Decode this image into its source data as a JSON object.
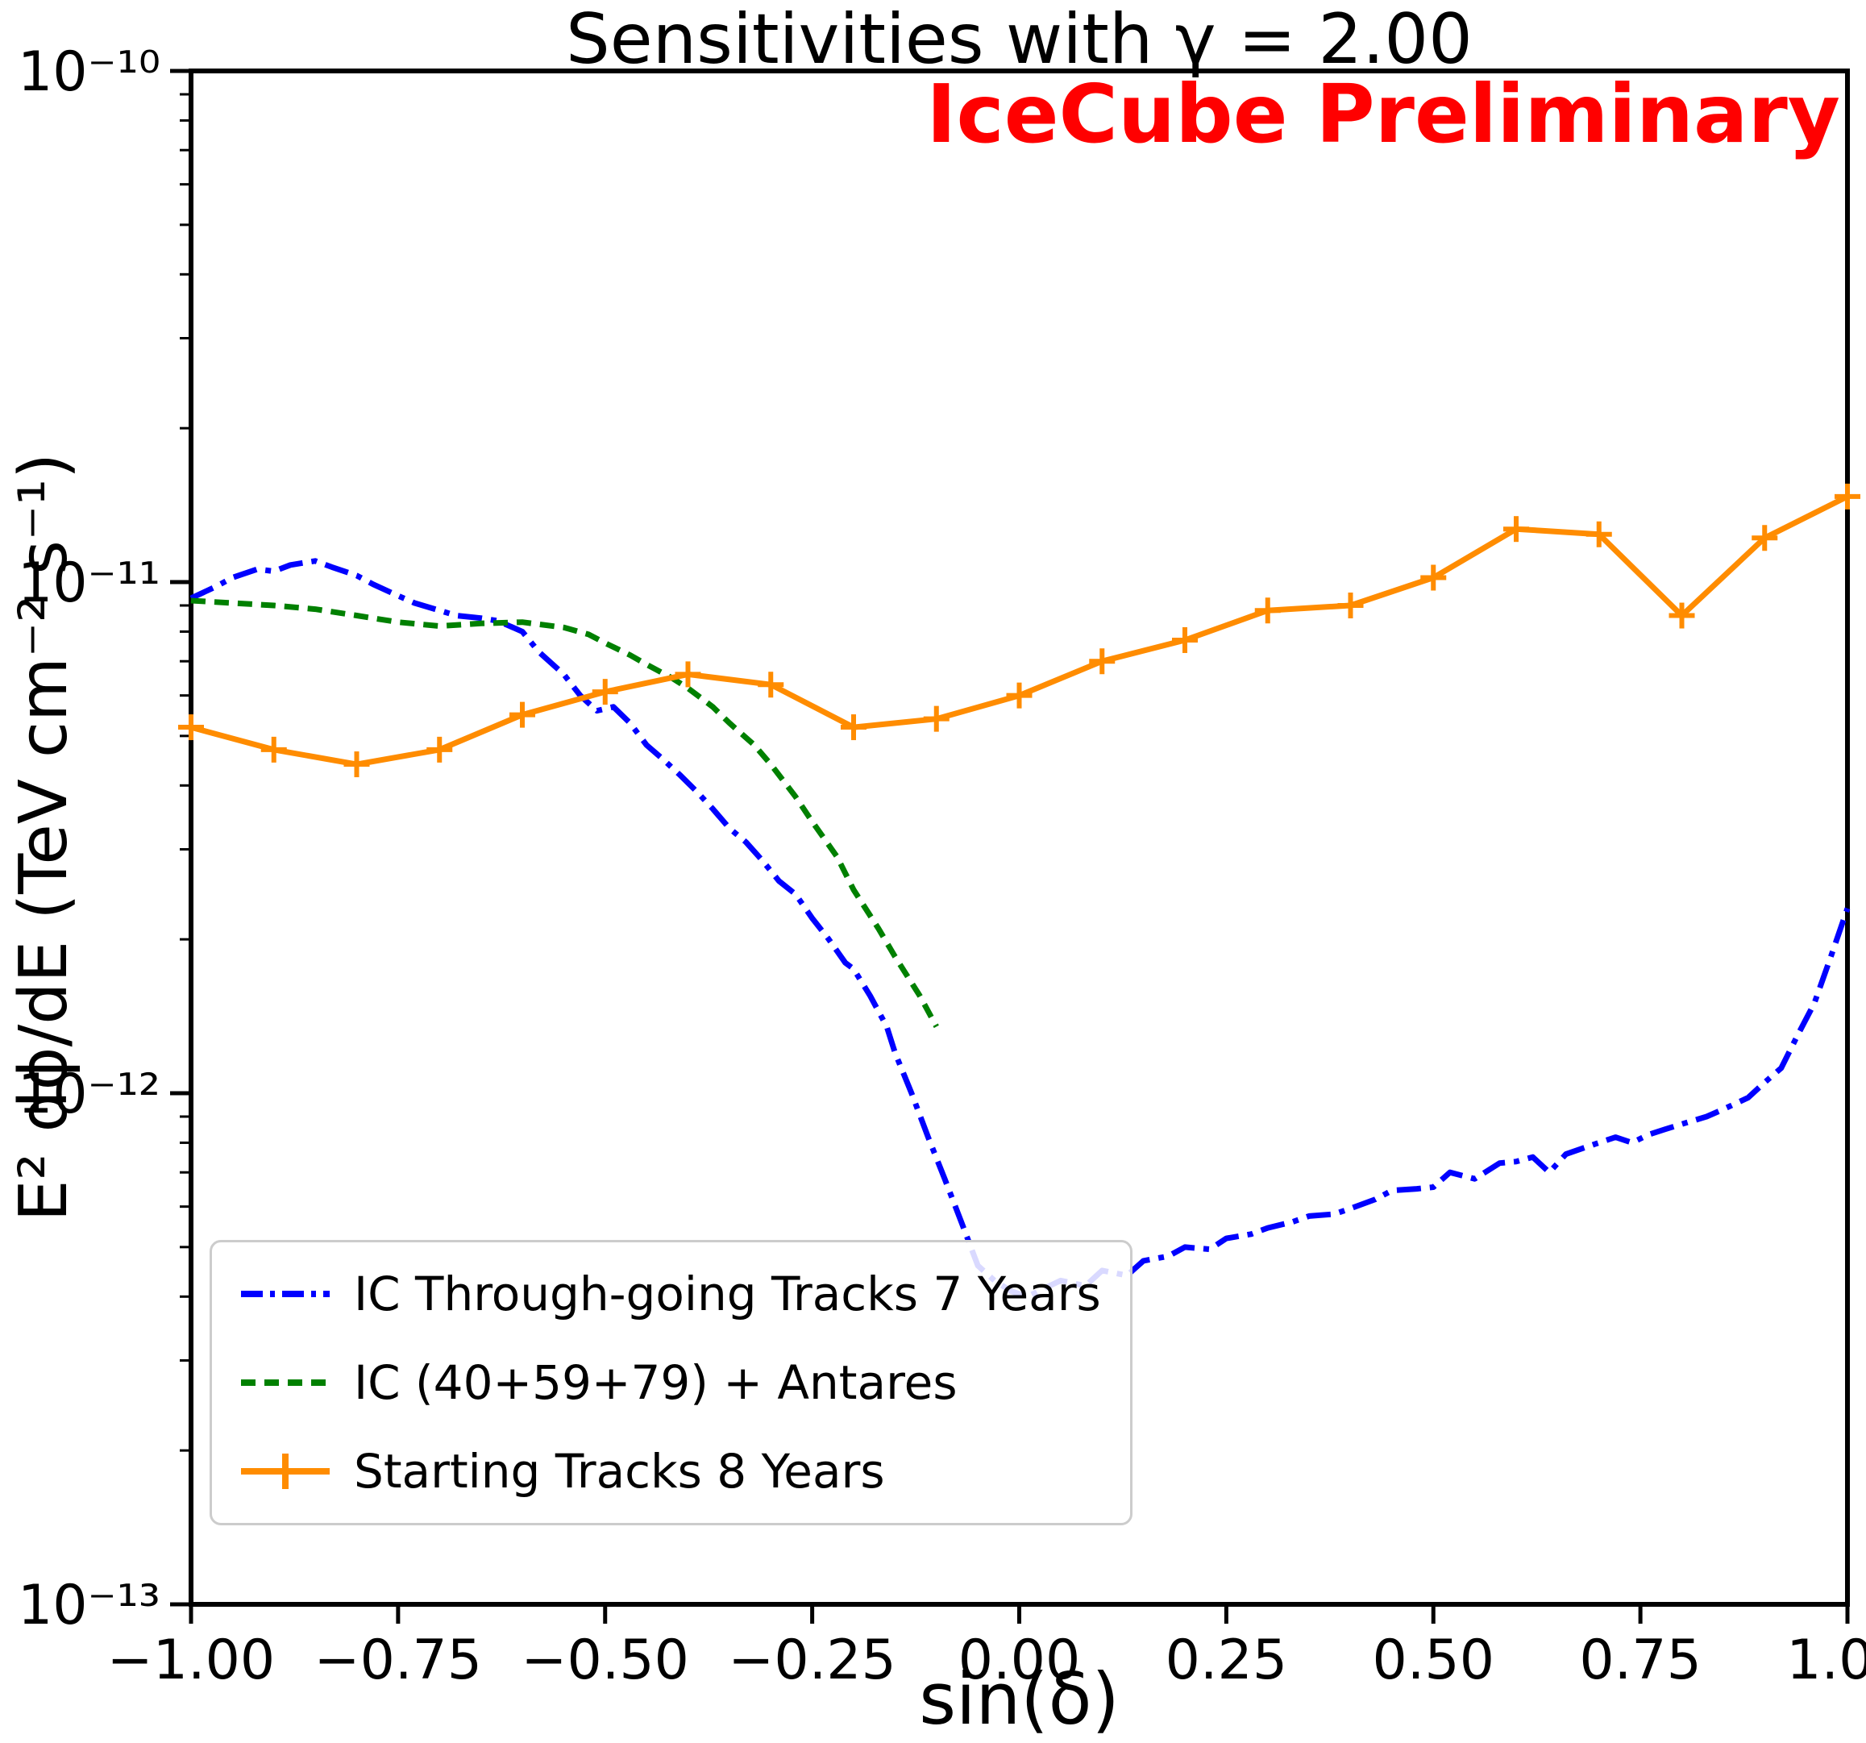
{
  "figure": {
    "watermark": "IceCube Preliminary",
    "watermark_color": "#ff0000",
    "frame_color": "#000000",
    "background_color": "#ffffff"
  },
  "chart_data": {
    "type": "line",
    "title": "Sensitivities with γ = 2.00",
    "xlabel": "sin(δ)",
    "ylabel": "E² dϕ/dE (TeV cm⁻² s⁻¹)",
    "yscale": "log",
    "grid": false,
    "xlim": [
      -1.0,
      1.0
    ],
    "ylim_log10": [
      -13,
      -10
    ],
    "legend_position": "lower left",
    "x_tick_values": [
      -1.0,
      -0.75,
      -0.5,
      -0.25,
      0.0,
      0.25,
      0.5,
      0.75,
      1.0
    ],
    "x_tick_labels": [
      "−1.00",
      "−0.75",
      "−0.50",
      "−0.25",
      "0.00",
      "0.25",
      "0.50",
      "0.75",
      "1.00"
    ],
    "y_tick_values_log10": [
      -10,
      -11,
      -12,
      -13
    ],
    "y_tick_labels": [
      "10⁻¹⁰",
      "10⁻¹¹",
      "10⁻¹²",
      "10⁻¹³"
    ],
    "series": [
      {
        "name": "IC Through-going Tracks 7 Years",
        "color": "#0000ff",
        "style": "dashdot",
        "marker": "none",
        "points": [
          [
            -1.0,
            9.3e-12
          ],
          [
            -0.97,
            9.8e-12
          ],
          [
            -0.95,
            1.02e-11
          ],
          [
            -0.92,
            1.06e-11
          ],
          [
            -0.9,
            1.05e-11
          ],
          [
            -0.88,
            1.08e-11
          ],
          [
            -0.85,
            1.1e-11
          ],
          [
            -0.83,
            1.07e-11
          ],
          [
            -0.8,
            1.03e-11
          ],
          [
            -0.78,
            9.9e-12
          ],
          [
            -0.75,
            9.4e-12
          ],
          [
            -0.73,
            9.1e-12
          ],
          [
            -0.7,
            8.8e-12
          ],
          [
            -0.68,
            8.6e-12
          ],
          [
            -0.65,
            8.5e-12
          ],
          [
            -0.63,
            8.4e-12
          ],
          [
            -0.6,
            8e-12
          ],
          [
            -0.58,
            7.3e-12
          ],
          [
            -0.55,
            6.6e-12
          ],
          [
            -0.53,
            6e-12
          ],
          [
            -0.51,
            5.6e-12
          ],
          [
            -0.49,
            5.7e-12
          ],
          [
            -0.47,
            5.3e-12
          ],
          [
            -0.45,
            4.8e-12
          ],
          [
            -0.43,
            4.5e-12
          ],
          [
            -0.41,
            4.2e-12
          ],
          [
            -0.39,
            3.9e-12
          ],
          [
            -0.37,
            3.6e-12
          ],
          [
            -0.35,
            3.3e-12
          ],
          [
            -0.33,
            3.1e-12
          ],
          [
            -0.31,
            2.85e-12
          ],
          [
            -0.29,
            2.6e-12
          ],
          [
            -0.27,
            2.45e-12
          ],
          [
            -0.25,
            2.2e-12
          ],
          [
            -0.23,
            2e-12
          ],
          [
            -0.21,
            1.8e-12
          ],
          [
            -0.2,
            1.75e-12
          ],
          [
            -0.18,
            1.55e-12
          ],
          [
            -0.16,
            1.35e-12
          ],
          [
            -0.15,
            1.2e-12
          ],
          [
            -0.13,
            1e-12
          ],
          [
            -0.11,
            8.2e-13
          ],
          [
            -0.09,
            6.8e-13
          ],
          [
            -0.07,
            5.6e-13
          ],
          [
            -0.05,
            4.6e-13
          ],
          [
            -0.03,
            4.3e-13
          ],
          [
            -0.01,
            4.1e-13
          ],
          [
            0.01,
            4e-13
          ],
          [
            0.03,
            4.15e-13
          ],
          [
            0.05,
            4.3e-13
          ],
          [
            0.08,
            4.2e-13
          ],
          [
            0.1,
            4.5e-13
          ],
          [
            0.13,
            4.4e-13
          ],
          [
            0.15,
            4.7e-13
          ],
          [
            0.18,
            4.8e-13
          ],
          [
            0.2,
            5e-13
          ],
          [
            0.23,
            4.95e-13
          ],
          [
            0.25,
            5.2e-13
          ],
          [
            0.28,
            5.3e-13
          ],
          [
            0.3,
            5.45e-13
          ],
          [
            0.33,
            5.6e-13
          ],
          [
            0.35,
            5.75e-13
          ],
          [
            0.38,
            5.8e-13
          ],
          [
            0.4,
            5.95e-13
          ],
          [
            0.43,
            6.2e-13
          ],
          [
            0.45,
            6.45e-13
          ],
          [
            0.48,
            6.5e-13
          ],
          [
            0.5,
            6.55e-13
          ],
          [
            0.52,
            7e-13
          ],
          [
            0.55,
            6.8e-13
          ],
          [
            0.58,
            7.3e-13
          ],
          [
            0.6,
            7.35e-13
          ],
          [
            0.62,
            7.5e-13
          ],
          [
            0.64,
            7e-13
          ],
          [
            0.66,
            7.6e-13
          ],
          [
            0.68,
            7.8e-13
          ],
          [
            0.7,
            8e-13
          ],
          [
            0.72,
            8.2e-13
          ],
          [
            0.74,
            8e-13
          ],
          [
            0.76,
            8.3e-13
          ],
          [
            0.78,
            8.5e-13
          ],
          [
            0.8,
            8.7e-13
          ],
          [
            0.83,
            9e-13
          ],
          [
            0.85,
            9.3e-13
          ],
          [
            0.88,
            9.8e-13
          ],
          [
            0.9,
            1.05e-12
          ],
          [
            0.92,
            1.12e-12
          ],
          [
            0.94,
            1.3e-12
          ],
          [
            0.96,
            1.5e-12
          ],
          [
            0.98,
            1.85e-12
          ],
          [
            1.0,
            2.3e-12
          ]
        ]
      },
      {
        "name": "IC (40+59+79) + Antares",
        "color": "#008000",
        "style": "dashed",
        "marker": "none",
        "points": [
          [
            -1.0,
            9.2e-12
          ],
          [
            -0.95,
            9.1e-12
          ],
          [
            -0.9,
            9e-12
          ],
          [
            -0.85,
            8.85e-12
          ],
          [
            -0.8,
            8.6e-12
          ],
          [
            -0.75,
            8.35e-12
          ],
          [
            -0.7,
            8.2e-12
          ],
          [
            -0.65,
            8.3e-12
          ],
          [
            -0.6,
            8.35e-12
          ],
          [
            -0.55,
            8.15e-12
          ],
          [
            -0.52,
            7.9e-12
          ],
          [
            -0.5,
            7.6e-12
          ],
          [
            -0.47,
            7.2e-12
          ],
          [
            -0.45,
            6.9e-12
          ],
          [
            -0.42,
            6.5e-12
          ],
          [
            -0.4,
            6.2e-12
          ],
          [
            -0.37,
            5.7e-12
          ],
          [
            -0.35,
            5.3e-12
          ],
          [
            -0.32,
            4.8e-12
          ],
          [
            -0.3,
            4.4e-12
          ],
          [
            -0.27,
            3.8e-12
          ],
          [
            -0.25,
            3.4e-12
          ],
          [
            -0.22,
            2.9e-12
          ],
          [
            -0.2,
            2.5e-12
          ],
          [
            -0.17,
            2.1e-12
          ],
          [
            -0.15,
            1.85e-12
          ],
          [
            -0.12,
            1.55e-12
          ],
          [
            -0.1,
            1.35e-12
          ]
        ]
      },
      {
        "name": "Starting Tracks 8 Years",
        "color": "#ff8c00",
        "style": "solid",
        "marker": "plus",
        "points": [
          [
            -1.0,
            5.2e-12
          ],
          [
            -0.9,
            4.7e-12
          ],
          [
            -0.8,
            4.4e-12
          ],
          [
            -0.7,
            4.7e-12
          ],
          [
            -0.6,
            5.5e-12
          ],
          [
            -0.5,
            6.1e-12
          ],
          [
            -0.4,
            6.6e-12
          ],
          [
            -0.3,
            6.3e-12
          ],
          [
            -0.2,
            5.2e-12
          ],
          [
            -0.1,
            5.4e-12
          ],
          [
            0.0,
            6e-12
          ],
          [
            0.1,
            7e-12
          ],
          [
            0.2,
            7.7e-12
          ],
          [
            0.3,
            8.8e-12
          ],
          [
            0.4,
            9e-12
          ],
          [
            0.5,
            1.02e-11
          ],
          [
            0.6,
            1.27e-11
          ],
          [
            0.7,
            1.24e-11
          ],
          [
            0.8,
            8.6e-12
          ],
          [
            0.9,
            1.22e-11
          ],
          [
            1.0,
            1.47e-11
          ]
        ]
      }
    ]
  }
}
